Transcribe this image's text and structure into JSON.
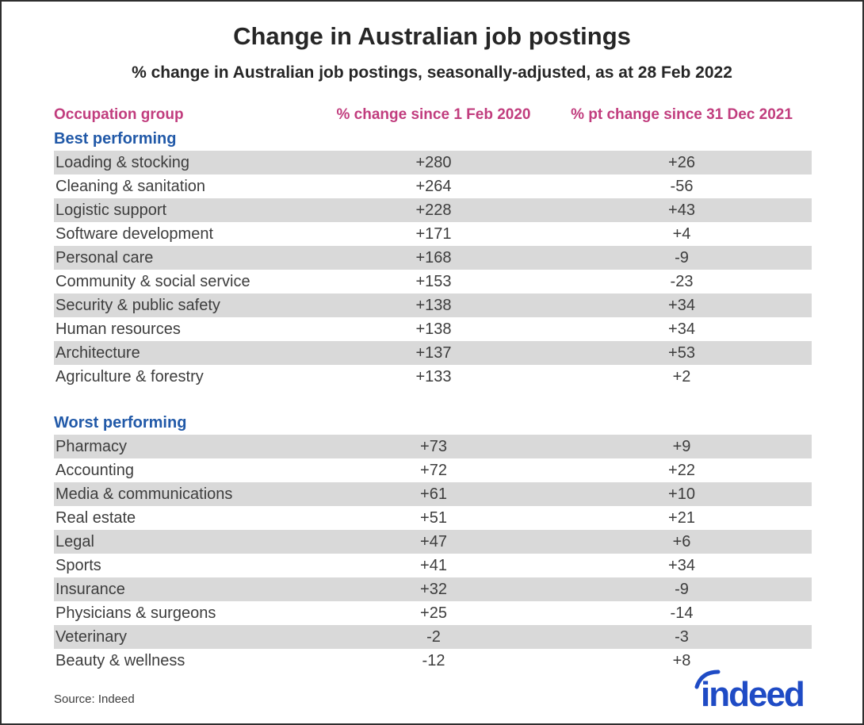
{
  "title": "Change in Australian job postings",
  "subtitle": "% change in Australian job postings, seasonally-adjusted, as at 28 Feb 2022",
  "source": "Source: Indeed",
  "logo_text": "indeed",
  "colors": {
    "header_pink": "#c13d7e",
    "section_blue": "#2159a8",
    "row_gray": "#d9d9d9",
    "row_text": "#3d3d3d",
    "title_text": "#262626",
    "border": "#2e2e2e",
    "logo_blue": "#1f4bc5"
  },
  "chart_data": {
    "type": "table",
    "title": "Change in Australian job postings",
    "subtitle": "% change in Australian job postings, seasonally-adjusted, as at 28 Feb 2022",
    "columns": [
      "Occupation group",
      "% change since 1 Feb 2020",
      "% pt change since 31 Dec 2021"
    ],
    "sections": [
      {
        "name": "Best performing",
        "rows": [
          [
            "Loading & stocking",
            "+280",
            "+26"
          ],
          [
            "Cleaning & sanitation",
            "+264",
            "-56"
          ],
          [
            "Logistic support",
            "+228",
            "+43"
          ],
          [
            "Software development",
            "+171",
            "+4"
          ],
          [
            "Personal care",
            "+168",
            "-9"
          ],
          [
            "Community & social service",
            "+153",
            "-23"
          ],
          [
            "Security & public safety",
            "+138",
            "+34"
          ],
          [
            "Human resources",
            "+138",
            "+34"
          ],
          [
            "Architecture",
            "+137",
            "+53"
          ],
          [
            "Agriculture & forestry",
            "+133",
            "+2"
          ]
        ]
      },
      {
        "name": "Worst performing",
        "rows": [
          [
            "Pharmacy",
            "+73",
            "+9"
          ],
          [
            "Accounting",
            "+72",
            "+22"
          ],
          [
            "Media & communications",
            "+61",
            "+10"
          ],
          [
            "Real estate",
            "+51",
            "+21"
          ],
          [
            "Legal",
            "+47",
            "+6"
          ],
          [
            "Sports",
            "+41",
            "+34"
          ],
          [
            "Insurance",
            "+32",
            "-9"
          ],
          [
            "Physicians & surgeons",
            "+25",
            "-14"
          ],
          [
            "Veterinary",
            "-2",
            "-3"
          ],
          [
            "Beauty & wellness",
            "-12",
            "+8"
          ]
        ]
      }
    ],
    "source": "Source: Indeed"
  }
}
